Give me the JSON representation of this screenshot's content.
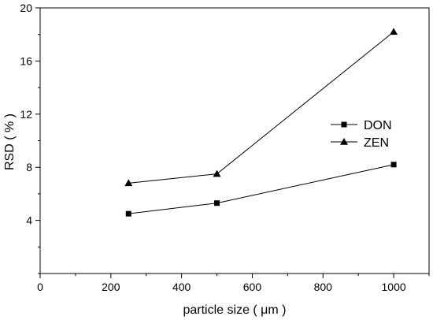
{
  "chart_data": {
    "type": "line",
    "xlabel": "particle size ( μm )",
    "ylabel": "RSD ( % )",
    "xlim": [
      0,
      1100
    ],
    "ylim": [
      0,
      20
    ],
    "x_ticks": [
      0,
      200,
      400,
      600,
      800,
      1000
    ],
    "y_ticks": [
      4,
      8,
      12,
      16,
      20
    ],
    "grid": false,
    "legend_position": "center-right",
    "series": [
      {
        "name": "DON",
        "marker": "square",
        "color": "#000000",
        "x": [
          250,
          500,
          1000
        ],
        "y": [
          4.5,
          5.3,
          8.2
        ]
      },
      {
        "name": "ZEN",
        "marker": "triangle",
        "color": "#000000",
        "x": [
          250,
          500,
          1000
        ],
        "y": [
          6.8,
          7.5,
          18.2
        ]
      }
    ]
  }
}
